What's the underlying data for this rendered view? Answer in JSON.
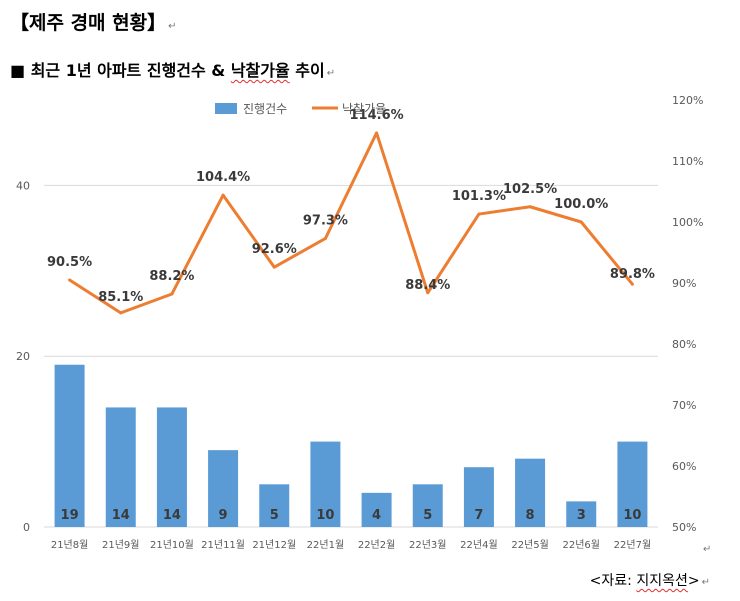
{
  "header": {
    "title": "【제주 경매 현황】",
    "subtitle": "■ 최근 1년 아파트 진행건수 & 낙찰가율 추이",
    "source": "<자료: 지지옥션>",
    "paragraph_mark": "↵"
  },
  "chart_data": {
    "type": "bar+line",
    "categories": [
      "21년8월",
      "21년9월",
      "21년10월",
      "21년11월",
      "21년12월",
      "22년1월",
      "22년2월",
      "22년3월",
      "22년4월",
      "22년5월",
      "22년6월",
      "22년7월"
    ],
    "series": [
      {
        "name": "진행건수",
        "type": "bar",
        "axis": "left",
        "color": "#5b9bd5",
        "values": [
          19,
          14,
          14,
          9,
          5,
          10,
          4,
          5,
          7,
          8,
          3,
          10
        ],
        "labels": [
          "19",
          "14",
          "14",
          "9",
          "5",
          "10",
          "4",
          "5",
          "7",
          "8",
          "3",
          "10"
        ]
      },
      {
        "name": "낙찰가율",
        "type": "line",
        "axis": "right",
        "color": "#ed7d31",
        "values": [
          90.5,
          85.1,
          88.2,
          104.4,
          92.6,
          97.3,
          114.6,
          88.4,
          101.3,
          102.5,
          100.0,
          89.8
        ],
        "labels": [
          "90.5%",
          "85.1%",
          "88.2%",
          "104.4%",
          "92.6%",
          "97.3%",
          "114.6%",
          "88.4%",
          "101.3%",
          "102.5%",
          "100.0%",
          "89.8%"
        ]
      }
    ],
    "y_left": {
      "range": [
        0,
        50
      ],
      "ticks": [
        0,
        20,
        40
      ],
      "tick_labels": [
        "0",
        "20",
        "40"
      ]
    },
    "y_right": {
      "range": [
        50,
        120
      ],
      "ticks": [
        50,
        60,
        70,
        80,
        90,
        100,
        110,
        120
      ],
      "tick_labels": [
        "50%",
        "60%",
        "70%",
        "80%",
        "90%",
        "100%",
        "110%",
        "120%"
      ]
    },
    "gridlines": [
      0,
      20,
      40
    ],
    "legend": {
      "position": "top",
      "entries": [
        "진행건수",
        "낙찰가율"
      ]
    }
  }
}
